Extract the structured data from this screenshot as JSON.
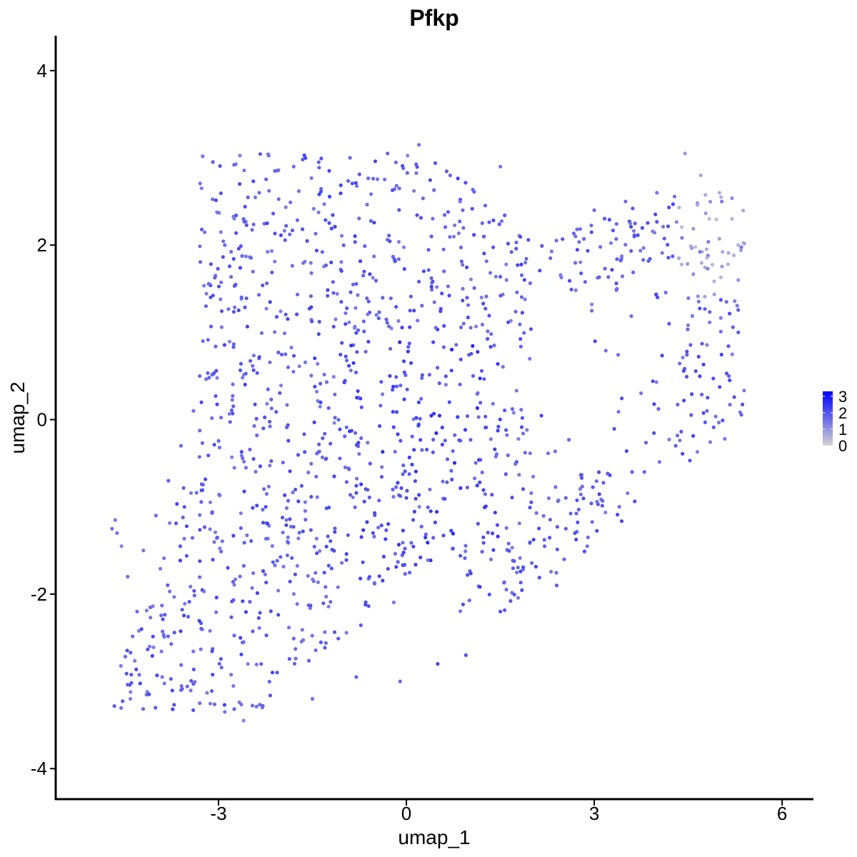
{
  "chart_data": {
    "type": "scatter",
    "title": "Pfkp",
    "xlabel": "umap_1",
    "ylabel": "umap_2",
    "xlim": [
      -5.6,
      6.5
    ],
    "ylim": [
      -4.35,
      4.4
    ],
    "x_ticks": [
      -3,
      0,
      3,
      6
    ],
    "y_ticks": [
      -4,
      -2,
      0,
      2,
      4
    ],
    "x_tick_labels": [
      "-3",
      "0",
      "3",
      "6"
    ],
    "y_tick_labels": [
      "-4",
      "-2",
      "0",
      "2",
      "4"
    ],
    "grid": false,
    "legend": {
      "placement": "right",
      "type": "colorbar",
      "labels": [
        "3",
        "2",
        "1",
        "0"
      ],
      "values": [
        3,
        2,
        1,
        0
      ],
      "range": [
        0,
        3.3
      ]
    },
    "colors": {
      "low": "#d3d3d3",
      "high": "#0000ff"
    },
    "point_count_approx": 1400,
    "points": [
      [
        -4.7,
        -1.25,
        1.6
      ],
      [
        -4.65,
        -1.15,
        1.4
      ],
      [
        -4.62,
        -1.3,
        1.5
      ],
      [
        -4.55,
        -1.45,
        1.3
      ],
      [
        -4.45,
        -1.8,
        1.5
      ],
      [
        -4.3,
        -2.2,
        1.6
      ],
      [
        -4.1,
        -2.6,
        1.4
      ],
      [
        -3.9,
        -2.95,
        1.5
      ],
      [
        -3.6,
        -3.1,
        1.7
      ],
      [
        -3.3,
        -3.25,
        1.6
      ],
      [
        -2.9,
        -3.35,
        1.5
      ],
      [
        -2.6,
        -3.45,
        1.2
      ],
      [
        -2.3,
        -3.3,
        1.6
      ],
      [
        -1.5,
        -3.2,
        1.6
      ],
      [
        -0.8,
        -2.95,
        1.8
      ],
      [
        -0.1,
        -3.0,
        1.7
      ],
      [
        0.5,
        -2.8,
        2.2
      ],
      [
        0.95,
        -2.7,
        2.0
      ],
      [
        1.5,
        -2.2,
        2.1
      ],
      [
        2.4,
        -1.9,
        1.9
      ],
      [
        2.9,
        -1.35,
        1.6
      ],
      [
        3.4,
        -1.0,
        1.6
      ],
      [
        3.8,
        -0.6,
        1.8
      ],
      [
        4.3,
        -0.3,
        1.9
      ],
      [
        4.8,
        0.1,
        1.7
      ],
      [
        5.15,
        0.5,
        1.8
      ],
      [
        5.3,
        1.0,
        1.9
      ],
      [
        5.3,
        1.6,
        1.0
      ],
      [
        5.3,
        2.0,
        0.6
      ],
      [
        5.2,
        2.3,
        0.5
      ],
      [
        5.0,
        2.6,
        0.6
      ],
      [
        4.7,
        2.8,
        0.7
      ],
      [
        4.45,
        3.05,
        0.9
      ],
      [
        4.0,
        2.6,
        1.5
      ],
      [
        3.5,
        2.5,
        1.6
      ],
      [
        3.0,
        2.4,
        1.7
      ],
      [
        2.7,
        2.1,
        1.6
      ],
      [
        2.3,
        1.85,
        1.7
      ],
      [
        1.9,
        1.8,
        1.5
      ],
      [
        1.6,
        1.6,
        1.4
      ],
      [
        1.2,
        1.4,
        1.3
      ],
      [
        0.9,
        1.5,
        1.5
      ],
      [
        0.6,
        1.7,
        1.7
      ],
      [
        0.4,
        2.1,
        1.9
      ],
      [
        0.9,
        2.4,
        1.7
      ],
      [
        1.5,
        2.9,
        1.6
      ],
      [
        0.7,
        2.8,
        1.7
      ],
      [
        0.2,
        3.15,
        1.6
      ],
      [
        -0.3,
        3.05,
        1.7
      ],
      [
        -0.9,
        3.0,
        1.7
      ],
      [
        -1.4,
        2.95,
        1.8
      ],
      [
        -1.8,
        2.9,
        1.6
      ],
      [
        -2.1,
        2.85,
        1.7
      ],
      [
        -2.35,
        2.6,
        1.6
      ],
      [
        -2.6,
        2.3,
        1.8
      ],
      [
        -2.9,
        2.0,
        1.7
      ],
      [
        -3.05,
        1.65,
        1.7
      ],
      [
        -3.2,
        1.3,
        1.8
      ],
      [
        -3.25,
        0.9,
        1.6
      ],
      [
        -3.3,
        0.5,
        1.7
      ],
      [
        -3.4,
        0.1,
        1.6
      ],
      [
        -3.6,
        -0.3,
        1.7
      ],
      [
        -3.8,
        -0.7,
        1.8
      ],
      [
        -4.0,
        -1.1,
        1.6
      ],
      [
        -4.2,
        -1.5,
        1.5
      ]
    ]
  }
}
